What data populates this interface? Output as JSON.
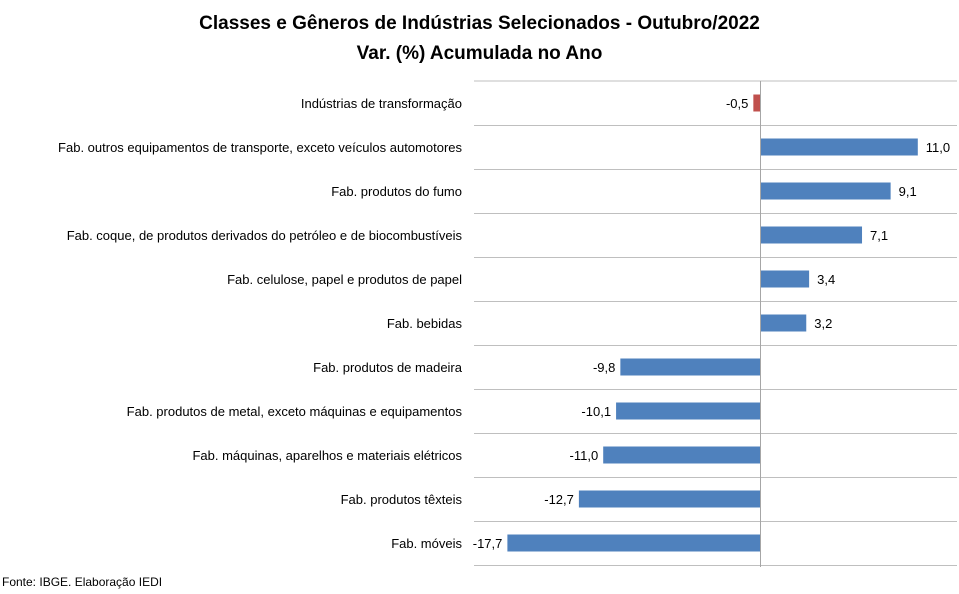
{
  "chart_data": {
    "type": "bar",
    "orientation": "horizontal",
    "title": "Classes e Gêneros de Indústrias Selecionados - Outubro/2022",
    "subtitle": "Var. (%) Acumulada no Ano",
    "categories": [
      "Indústrias de transformação",
      "Fab. outros equipamentos de transporte, exceto veículos automotores",
      "Fab. produtos do fumo",
      "Fab. coque, de produtos derivados do petróleo e de biocombustíveis",
      "Fab. celulose, papel e produtos de papel",
      "Fab. bebidas",
      "Fab. produtos de madeira",
      "Fab. produtos de metal, exceto máquinas e equipamentos",
      "Fab. máquinas, aparelhos e materiais elétricos",
      "Fab. produtos têxteis",
      "Fab. móveis"
    ],
    "values": [
      -0.5,
      11.0,
      9.1,
      7.1,
      3.4,
      3.2,
      -9.8,
      -10.1,
      -11.0,
      -12.7,
      -17.7
    ],
    "value_labels": [
      "-0,5",
      "11,0",
      "9,1",
      "7,1",
      "3,4",
      "3,2",
      "-9,8",
      "-10,1",
      "-11,0",
      "-12,7",
      "-17,7"
    ],
    "colors": [
      "#c0504d",
      "#4f81bd",
      "#4f81bd",
      "#4f81bd",
      "#4f81bd",
      "#4f81bd",
      "#4f81bd",
      "#4f81bd",
      "#4f81bd",
      "#4f81bd",
      "#4f81bd"
    ],
    "gridlines": "horizontal category separators",
    "legend": "none"
  },
  "source": "Fonte: IBGE. Elaboração IEDI"
}
